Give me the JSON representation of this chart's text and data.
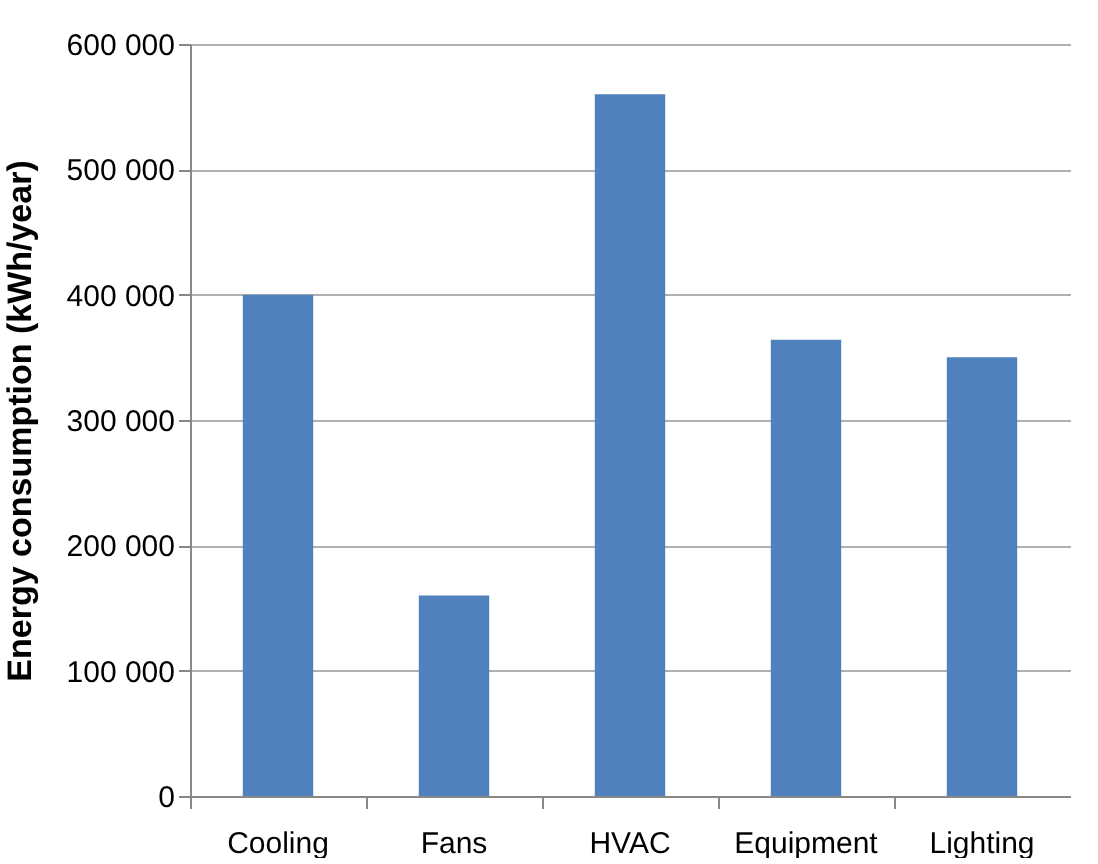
{
  "chart_data": {
    "type": "bar",
    "ylabel": "Energy consumption (kWh/year)",
    "categories": [
      "Cooling",
      "Fans",
      "HVAC",
      "Equipment",
      "Lighting"
    ],
    "values": [
      400000,
      160000,
      560000,
      364000,
      350000
    ],
    "color": "#4f81bd",
    "ylim": [
      0,
      600000
    ],
    "yticks": [
      {
        "value": 0,
        "label": "0"
      },
      {
        "value": 100000,
        "label": "100 000"
      },
      {
        "value": 200000,
        "label": "200 000"
      },
      {
        "value": 300000,
        "label": "300 000"
      },
      {
        "value": 400000,
        "label": "400 000"
      },
      {
        "value": 500000,
        "label": "500 000"
      },
      {
        "value": 600000,
        "label": "600 000"
      }
    ],
    "grid": "y"
  }
}
